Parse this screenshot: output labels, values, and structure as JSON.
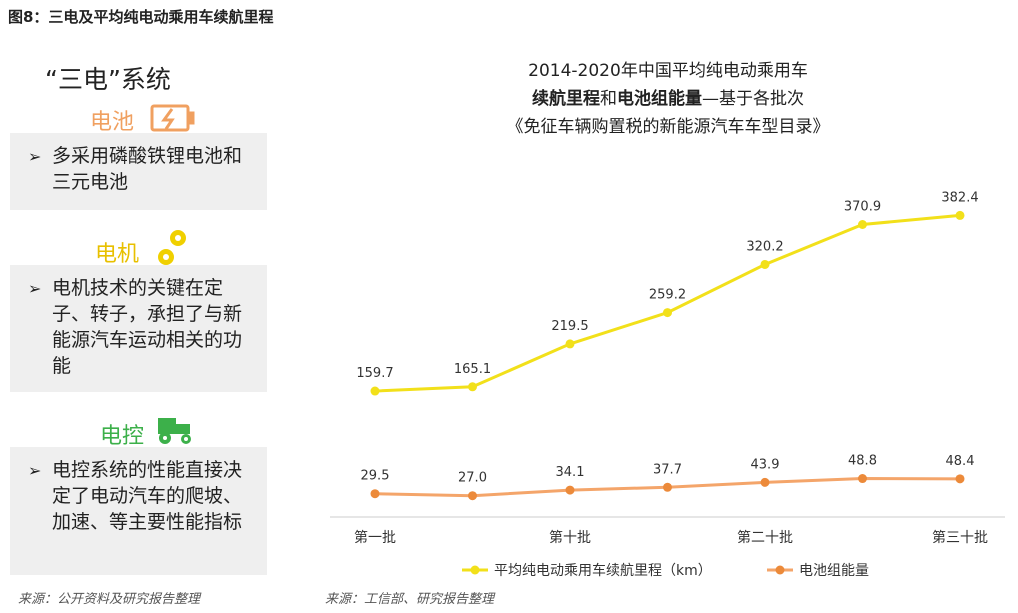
{
  "figure_title": "图8：三电及平均纯电动乘用车续航里程",
  "left_panel": {
    "heading": "“三电”系统",
    "sections": [
      {
        "name": "电池",
        "text": "多采用磷酸铁锂电池和三元电池"
      },
      {
        "name": "电机",
        "text": "电机技术的关键在定子、转子，承担了与新能源汽车运动相关的功能"
      },
      {
        "name": "电控",
        "text": "电控系统的性能直接决定了电动汽车的爬坡、加速、等主要性能指标"
      }
    ]
  },
  "chart_data": {
    "type": "line",
    "title_line1": "2014-2020年中国平均纯电动乘用车",
    "title_line2_parts": [
      "续航里程",
      "和",
      "电池组能量",
      "—基于各批次"
    ],
    "title_line3": "《免征车辆购置税的新能源汽车车型目录》",
    "categories": [
      "第一批",
      null,
      "第十批",
      null,
      "第二十批",
      null,
      "第三十批"
    ],
    "ylim": [
      0,
      440
    ],
    "series": [
      {
        "name": "平均纯电动乘用车续航里程（km）",
        "color": "#f2e01a",
        "values": [
          159.7,
          165.1,
          219.5,
          259.2,
          320.2,
          370.9,
          382.4
        ]
      },
      {
        "name": "电池组能量",
        "color": "#f4a56a",
        "marker_color": "#ec8a3a",
        "values": [
          29.5,
          27.0,
          34.1,
          37.7,
          43.9,
          48.8,
          48.4
        ],
        "value_labels": [
          "29.5",
          "27.0",
          "34.1",
          "37.7",
          "43.9",
          "48.8",
          "48.4"
        ]
      }
    ]
  },
  "sources": [
    "来源：公开资料及研究报告整理",
    "来源：工信部、研究报告整理"
  ]
}
